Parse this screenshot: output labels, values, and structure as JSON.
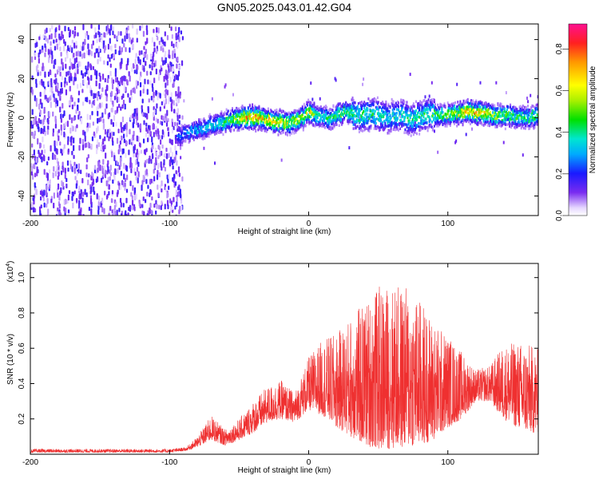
{
  "figure": {
    "title": "GN05.2025.043.01.42.G04"
  },
  "chart_data": [
    {
      "type": "heatmap",
      "name": "spectrogram",
      "xlabel": "Height of straight line (km)",
      "ylabel": "Frequency (Hz)",
      "xlim": [
        -200,
        165
      ],
      "ylim": [
        -50,
        48
      ],
      "xticks": [
        -200,
        -100,
        0,
        100
      ],
      "yticks": [
        -40,
        -20,
        0,
        20,
        40
      ],
      "colorbar": {
        "label": "Normalized spectral amplitude",
        "range": [
          0,
          0.92
        ],
        "ticks": [
          0.0,
          0.2,
          0.4,
          0.6,
          0.8
        ],
        "tick_labels": [
          "0.0",
          "0.2",
          "0.4",
          "0.6",
          "0.8"
        ]
      },
      "noise_region_x": [
        -200,
        -88
      ],
      "ridge": {
        "x": [
          -95,
          -85,
          -75,
          -65,
          -55,
          -45,
          -35,
          -25,
          -15,
          -5,
          0,
          5,
          15,
          25,
          35,
          45,
          55,
          65,
          75,
          85,
          95,
          105,
          115,
          125,
          135,
          145,
          155,
          165
        ],
        "y": [
          -10,
          -7,
          -5,
          -3,
          -1,
          0,
          0,
          -2,
          -3,
          0,
          3,
          1,
          -1,
          3,
          1,
          2,
          0,
          1,
          -1,
          2,
          1,
          2,
          3,
          2,
          1,
          1,
          0,
          1
        ],
        "peak_amplitude": [
          0.3,
          0.35,
          0.4,
          0.45,
          0.6,
          0.85,
          0.8,
          0.75,
          0.7,
          0.65,
          0.75,
          0.5,
          0.5,
          0.55,
          0.5,
          0.5,
          0.45,
          0.45,
          0.5,
          0.5,
          0.55,
          0.65,
          0.8,
          0.75,
          0.6,
          0.55,
          0.5,
          0.6
        ]
      }
    },
    {
      "type": "line",
      "name": "snr",
      "xlabel": "Height of straight line (km)",
      "ylabel": "SNR (10 * v/v)",
      "y_multiplier_label": "(x10",
      "y_multiplier_exp": "4",
      "y_multiplier_close": ")",
      "xlim": [
        -200,
        165
      ],
      "ylim": [
        0,
        1.08
      ],
      "xticks": [
        -200,
        -100,
        0,
        100
      ],
      "yticks": [
        0.2,
        0.4,
        0.6,
        0.8,
        1.0
      ],
      "ytick_labels": [
        "0.2",
        "0.4",
        "0.6",
        "0.8",
        "1.0"
      ],
      "series": [
        {
          "color": "#ef3030",
          "envelope_x": [
            -200,
            -150,
            -100,
            -88,
            -80,
            -70,
            -60,
            -50,
            -40,
            -30,
            -20,
            -10,
            0,
            10,
            20,
            30,
            40,
            50,
            60,
            70,
            80,
            90,
            100,
            110,
            120,
            130,
            140,
            150,
            160,
            165
          ],
          "envelope_high": [
            0.03,
            0.03,
            0.03,
            0.04,
            0.1,
            0.22,
            0.14,
            0.2,
            0.3,
            0.38,
            0.42,
            0.35,
            0.55,
            0.65,
            0.68,
            0.78,
            0.86,
            0.95,
            0.96,
            0.95,
            0.88,
            0.75,
            0.68,
            0.58,
            0.48,
            0.5,
            0.62,
            0.64,
            0.62,
            0.6
          ],
          "envelope_low": [
            0.01,
            0.01,
            0.01,
            0.02,
            0.04,
            0.08,
            0.05,
            0.08,
            0.12,
            0.18,
            0.2,
            0.18,
            0.25,
            0.22,
            0.15,
            0.1,
            0.05,
            0.03,
            0.03,
            0.04,
            0.05,
            0.08,
            0.15,
            0.2,
            0.3,
            0.3,
            0.2,
            0.15,
            0.12,
            0.12
          ]
        }
      ]
    }
  ]
}
